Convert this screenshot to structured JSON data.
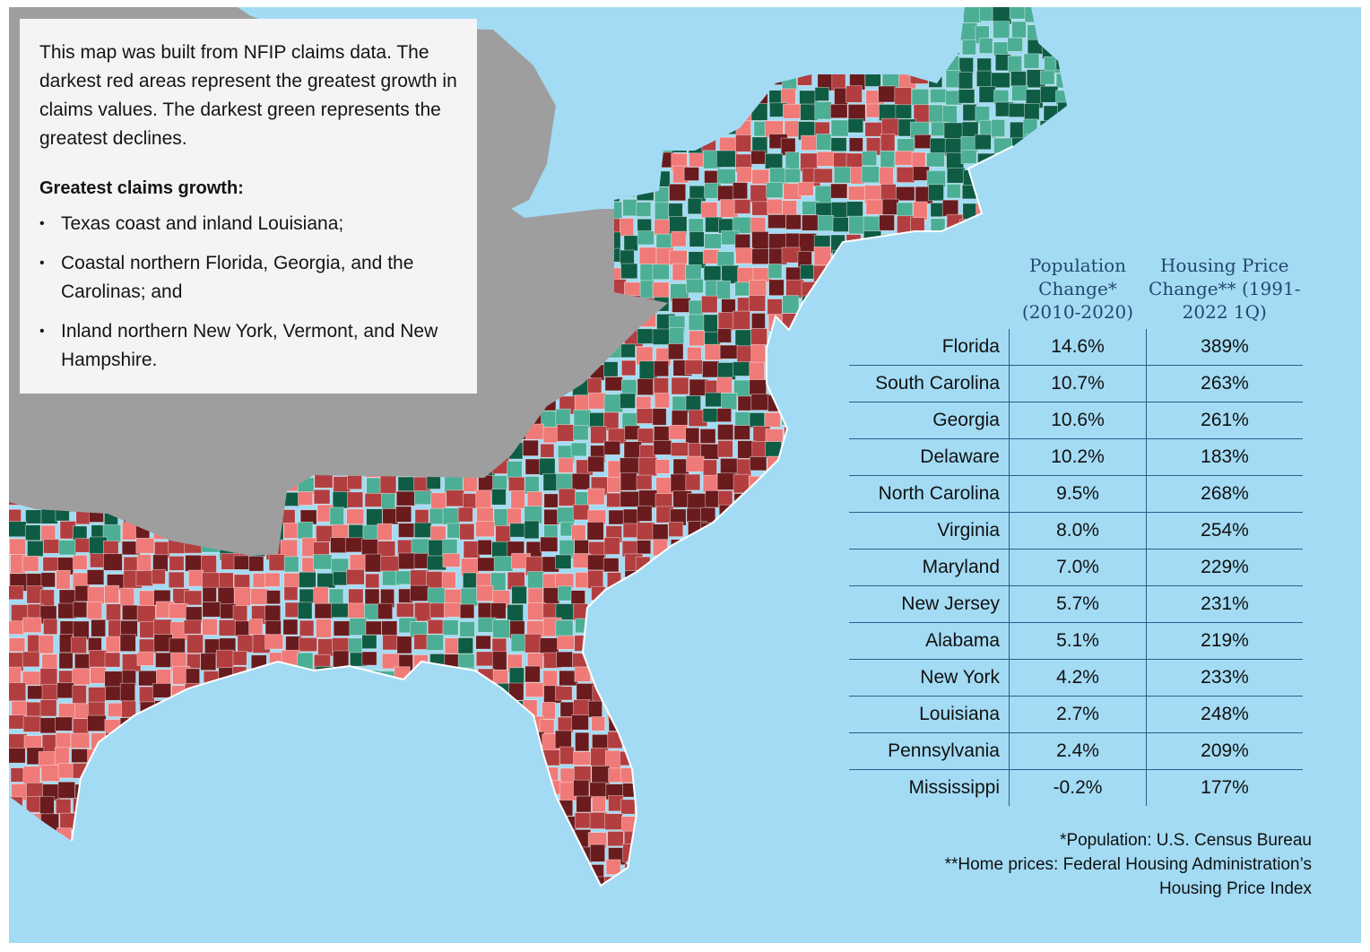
{
  "map": {
    "colors": {
      "water": "#a3dbf4",
      "land_outside": "#9e9e9e",
      "darkest_red": "#6a1b1d",
      "red": "#b23e40",
      "light_red": "#ef7a77",
      "light_green": "#4cae95",
      "darkest_green": "#0f5c45"
    }
  },
  "info": {
    "intro": "This map was built from NFIP claims data. The darkest red areas represent the greatest growth in claims values. The darkest green represents the greatest declines.",
    "growth_heading": "Greatest claims growth:",
    "growth_items": [
      "Texas coast and inland Louisiana;",
      "Coastal northern Florida, Georgia, and the Carolinas; and",
      "Inland northern New York, Vermont, and New Hampshire."
    ]
  },
  "table": {
    "headers": {
      "population": "Population Change* (2010-2020)",
      "housing": "Housing Price Change** (1991-2022 1Q)"
    },
    "rows": [
      {
        "state": "Florida",
        "population": "14.6%",
        "housing": "389%"
      },
      {
        "state": "South Carolina",
        "population": "10.7%",
        "housing": "263%"
      },
      {
        "state": "Georgia",
        "population": "10.6%",
        "housing": "261%"
      },
      {
        "state": "Delaware",
        "population": "10.2%",
        "housing": "183%"
      },
      {
        "state": "North Carolina",
        "population": "9.5%",
        "housing": "268%"
      },
      {
        "state": "Virginia",
        "population": "8.0%",
        "housing": "254%"
      },
      {
        "state": "Maryland",
        "population": "7.0%",
        "housing": "229%"
      },
      {
        "state": "New Jersey",
        "population": "5.7%",
        "housing": "231%"
      },
      {
        "state": "Alabama",
        "population": "5.1%",
        "housing": "219%"
      },
      {
        "state": "New York",
        "population": "4.2%",
        "housing": "233%"
      },
      {
        "state": "Louisiana",
        "population": "2.7%",
        "housing": "248%"
      },
      {
        "state": "Pennsylvania",
        "population": "2.4%",
        "housing": "209%"
      },
      {
        "state": "Mississippi",
        "population": "-0.2%",
        "housing": "177%"
      }
    ]
  },
  "sources": {
    "population": "*Population: U.S. Census Bureau",
    "home_prices": "**Home prices: Federal Housing Administration’s Housing Price Index"
  }
}
